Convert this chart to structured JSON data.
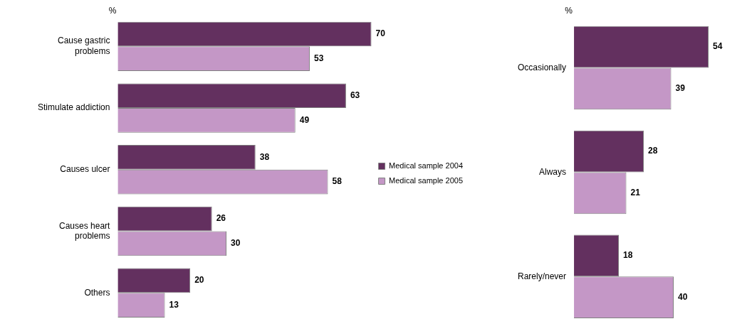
{
  "chart_data": [
    {
      "type": "bar",
      "orientation": "horizontal",
      "categories": [
        "Cause gastric problems",
        "Stimulate addiction",
        "Causes ulcer",
        "Causes heart problems",
        "Others"
      ],
      "series": [
        {
          "name": "Medical sample 2004",
          "color": "#63305f",
          "values": [
            70,
            63,
            38,
            26,
            20
          ]
        },
        {
          "name": "Medical sample 2005",
          "color": "#c497c6",
          "values": [
            53,
            49,
            58,
            30,
            13
          ]
        }
      ],
      "data_labels": true,
      "legend": "right",
      "grid": false,
      "annotations": [
        "%"
      ]
    },
    {
      "type": "bar",
      "orientation": "horizontal",
      "categories": [
        "Occasionally",
        "Always",
        "Rarely/never"
      ],
      "series": [
        {
          "color": "#63305f",
          "values": [
            54,
            28,
            18
          ]
        },
        {
          "color": "#c497c6",
          "values": [
            39,
            21,
            40
          ]
        }
      ],
      "data_labels": true,
      "legend": false,
      "grid": false,
      "annotations": [
        "%"
      ]
    }
  ]
}
